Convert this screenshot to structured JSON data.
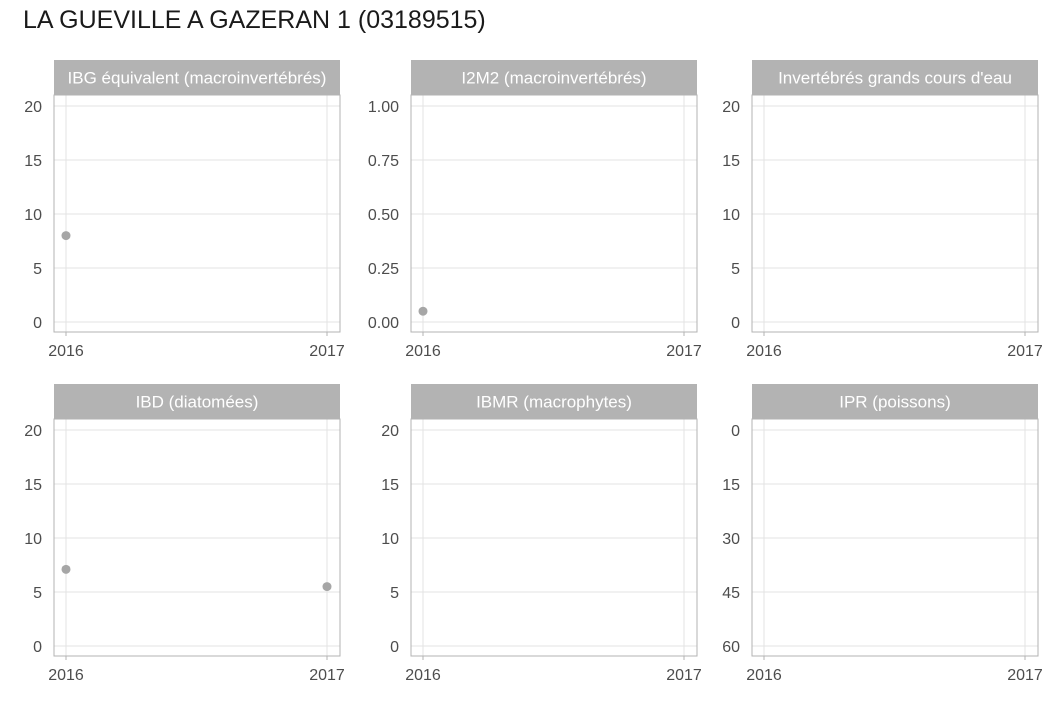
{
  "title": "LA GUEVILLE A GAZERAN 1 (03189515)",
  "colors": {
    "strip": "#b3b3b3",
    "panel_border": "#b3b3b3",
    "grid": "#e3e3e3",
    "point": "#a6a6a6",
    "tick_text": "#4d4d4d",
    "strip_text": "#ffffff"
  },
  "chart_data": [
    {
      "type": "scatter",
      "title": "IBG équivalent (macroinvertébrés)",
      "xlabel": "",
      "ylabel": "",
      "xlim": [
        2016,
        2017
      ],
      "x_ticks": [
        "2016",
        "2017"
      ],
      "ylim": [
        0,
        20
      ],
      "y_ticks": [
        "0",
        "5",
        "10",
        "15",
        "20"
      ],
      "y_reversed": false,
      "points": [
        {
          "x": 2016,
          "y": 8
        }
      ]
    },
    {
      "type": "scatter",
      "title": "I2M2 (macroinvertébrés)",
      "xlabel": "",
      "ylabel": "",
      "xlim": [
        2016,
        2017
      ],
      "x_ticks": [
        "2016",
        "2017"
      ],
      "ylim": [
        0,
        1
      ],
      "y_ticks": [
        "0.00",
        "0.25",
        "0.50",
        "0.75",
        "1.00"
      ],
      "y_reversed": false,
      "points": [
        {
          "x": 2016,
          "y": 0.05
        }
      ]
    },
    {
      "type": "scatter",
      "title": "Invertébrés grands cours d'eau",
      "xlabel": "",
      "ylabel": "",
      "xlim": [
        2016,
        2017
      ],
      "x_ticks": [
        "2016",
        "2017"
      ],
      "ylim": [
        0,
        20
      ],
      "y_ticks": [
        "0",
        "5",
        "10",
        "15",
        "20"
      ],
      "y_reversed": false,
      "points": []
    },
    {
      "type": "scatter",
      "title": "IBD (diatomées)",
      "xlabel": "",
      "ylabel": "",
      "xlim": [
        2016,
        2017
      ],
      "x_ticks": [
        "2016",
        "2017"
      ],
      "ylim": [
        0,
        20
      ],
      "y_ticks": [
        "0",
        "5",
        "10",
        "15",
        "20"
      ],
      "y_reversed": false,
      "points": [
        {
          "x": 2016,
          "y": 7.1
        },
        {
          "x": 2017,
          "y": 5.5
        }
      ]
    },
    {
      "type": "scatter",
      "title": "IBMR (macrophytes)",
      "xlabel": "",
      "ylabel": "",
      "xlim": [
        2016,
        2017
      ],
      "x_ticks": [
        "2016",
        "2017"
      ],
      "ylim": [
        0,
        20
      ],
      "y_ticks": [
        "0",
        "5",
        "10",
        "15",
        "20"
      ],
      "y_reversed": false,
      "points": []
    },
    {
      "type": "scatter",
      "title": "IPR (poissons)",
      "xlabel": "",
      "ylabel": "",
      "xlim": [
        2016,
        2017
      ],
      "x_ticks": [
        "2016",
        "2017"
      ],
      "ylim": [
        0,
        60
      ],
      "y_ticks": [
        "0",
        "15",
        "30",
        "45",
        "60"
      ],
      "y_reversed": true,
      "points": []
    }
  ]
}
